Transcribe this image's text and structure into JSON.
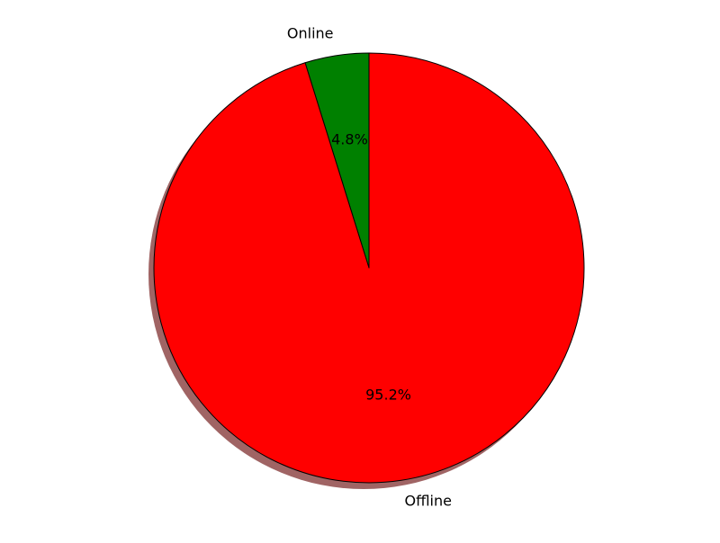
{
  "chart_data": {
    "type": "pie",
    "title": "",
    "categories": [
      "Online",
      "Offline"
    ],
    "values": [
      4.8,
      95.2
    ],
    "percent_labels": [
      "4.8%",
      "95.2%"
    ],
    "colors": [
      "#008000",
      "#ff0000"
    ],
    "edge_color": "#000000",
    "shadow": true,
    "shadow_color": "#a06464",
    "start_angle_deg": 90,
    "direction": "counterclockwise"
  }
}
